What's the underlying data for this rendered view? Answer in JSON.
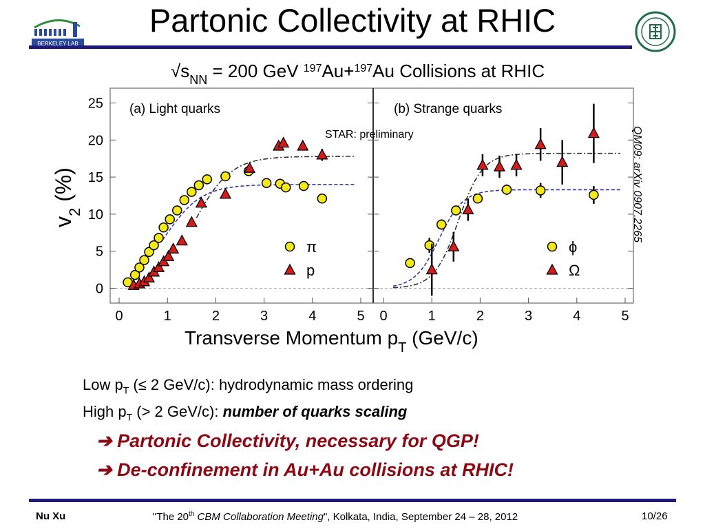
{
  "slide": {
    "title": "Partonic Collectivity at RHIC",
    "accent_color": "#1f1a7a",
    "logo_left_text": "BERKELEY LAB",
    "star_label": "STAR: preliminary",
    "reference": "QM09: arXiv 0907.2265",
    "line1": {
      "pre": "Low p",
      "sub": "T",
      "post": " (≤ 2 GeV/c): hydrodynamic mass ordering"
    },
    "line2": {
      "pre": "High p",
      "sub": "T",
      "mid": " (> 2 GeV/c): ",
      "emph": "number of quarks scaling"
    },
    "conclusion1": "Partonic Collectivity, necessary for QGP!",
    "conclusion2": "De-confinement in Au+Au collisions at RHIC!",
    "conclusion_color": "#8b0a14",
    "arrow_icon": "➔",
    "footer_author": "Nu Xu",
    "footer_conf_pre": "\"The 20",
    "footer_conf_sup": "th",
    "footer_conf_name": " CBM Collaboration Meeting",
    "footer_conf_post": "\", Kolkata, India, September 24 – 28,  2012",
    "footer_page": "10/26"
  },
  "chart_data": [
    {
      "type": "scatter",
      "title": "√s_NN = 200 GeV 197Au+197Au Collisions at RHIC",
      "panel_title": "(a) Light quarks",
      "xlabel": "Transverse Momentum p_T (GeV/c)",
      "ylabel": "v_2 (%)",
      "xlim": [
        0,
        5
      ],
      "ylim": [
        -2,
        27
      ],
      "xticks": [
        "0",
        "1",
        "2",
        "3",
        "4",
        "5"
      ],
      "yticks": [
        "0",
        "5",
        "10",
        "15",
        "20",
        "25"
      ],
      "grid": false,
      "legend_position": "bottom-right",
      "series": [
        {
          "name": "π",
          "marker": "circle",
          "color": "#f2e81a",
          "x": [
            0.18,
            0.33,
            0.42,
            0.52,
            0.62,
            0.72,
            0.82,
            0.92,
            1.05,
            1.2,
            1.35,
            1.5,
            1.65,
            1.82,
            2.2,
            2.68,
            3.05,
            3.33,
            3.45,
            3.82,
            4.2
          ],
          "y": [
            0.8,
            1.8,
            2.8,
            3.8,
            4.9,
            5.8,
            6.8,
            8.2,
            9.3,
            10.5,
            11.9,
            13.0,
            13.9,
            14.7,
            15.1,
            15.8,
            14.2,
            14.1,
            13.6,
            13.8,
            12.1
          ],
          "yerr": [
            0.2,
            0.2,
            0.2,
            0.2,
            0.2,
            0.2,
            0.2,
            0.2,
            0.2,
            0.2,
            0.2,
            0.2,
            0.2,
            0.2,
            0.2,
            0.2,
            0.4,
            0.4,
            0.4,
            0.4,
            0.6
          ]
        },
        {
          "name": "p",
          "marker": "triangle",
          "color": "#d41c1c",
          "x": [
            0.3,
            0.42,
            0.52,
            0.62,
            0.72,
            0.82,
            0.92,
            1.02,
            1.12,
            1.3,
            1.5,
            1.7,
            2.2,
            2.7,
            3.3,
            3.4,
            3.8,
            4.2
          ],
          "y": [
            0.4,
            0.6,
            0.9,
            1.4,
            2.2,
            2.8,
            3.6,
            4.3,
            5.3,
            6.4,
            8.9,
            11.5,
            12.7,
            16.2,
            19.2,
            19.6,
            19.2,
            18.0
          ],
          "yerr": [
            0.2,
            0.2,
            0.2,
            0.2,
            0.2,
            0.2,
            0.2,
            0.2,
            0.2,
            0.2,
            0.2,
            0.2,
            0.3,
            0.4,
            0.6,
            0.6,
            0.6,
            0.8
          ]
        }
      ],
      "fits": [
        {
          "series": "π",
          "style": "dashed",
          "color": "#3436a8",
          "plateau": 14.0
        },
        {
          "series": "p",
          "style": "dash-dot",
          "color": "#333333",
          "plateau": 17.8
        }
      ]
    },
    {
      "type": "scatter",
      "panel_title": "(b) Strange quarks",
      "xlim": [
        0,
        5
      ],
      "ylim": [
        -2,
        27
      ],
      "xticks": [
        "0",
        "1",
        "2",
        "3",
        "4",
        "5"
      ],
      "grid": false,
      "legend_position": "bottom-right",
      "series": [
        {
          "name": "ϕ",
          "marker": "circle",
          "color": "#f2e81a",
          "x": [
            0.55,
            0.95,
            1.2,
            1.5,
            1.95,
            2.55,
            3.25,
            4.35
          ],
          "y": [
            3.4,
            5.8,
            8.6,
            10.5,
            12.1,
            13.3,
            13.2,
            12.6
          ],
          "yerr": [
            0.6,
            1.0,
            0.7,
            0.6,
            0.6,
            0.7,
            1.0,
            1.2
          ]
        },
        {
          "name": "Ω",
          "marker": "triangle",
          "color": "#d41c1c",
          "x": [
            1.0,
            1.45,
            1.75,
            2.05,
            2.4,
            2.75,
            3.25,
            3.7,
            4.35
          ],
          "y": [
            2.5,
            5.6,
            10.6,
            16.6,
            16.4,
            16.6,
            19.4,
            17.0,
            20.9
          ],
          "yerr": [
            3.5,
            2.0,
            1.5,
            1.5,
            1.5,
            1.5,
            2.2,
            3.0,
            4.0
          ]
        }
      ],
      "fits": [
        {
          "series": "ϕ",
          "style": "dashed",
          "color": "#3436a8",
          "plateau": 13.3
        },
        {
          "series": "Ω",
          "style": "dash-dot",
          "color": "#333333",
          "plateau": 18.2
        }
      ]
    }
  ]
}
